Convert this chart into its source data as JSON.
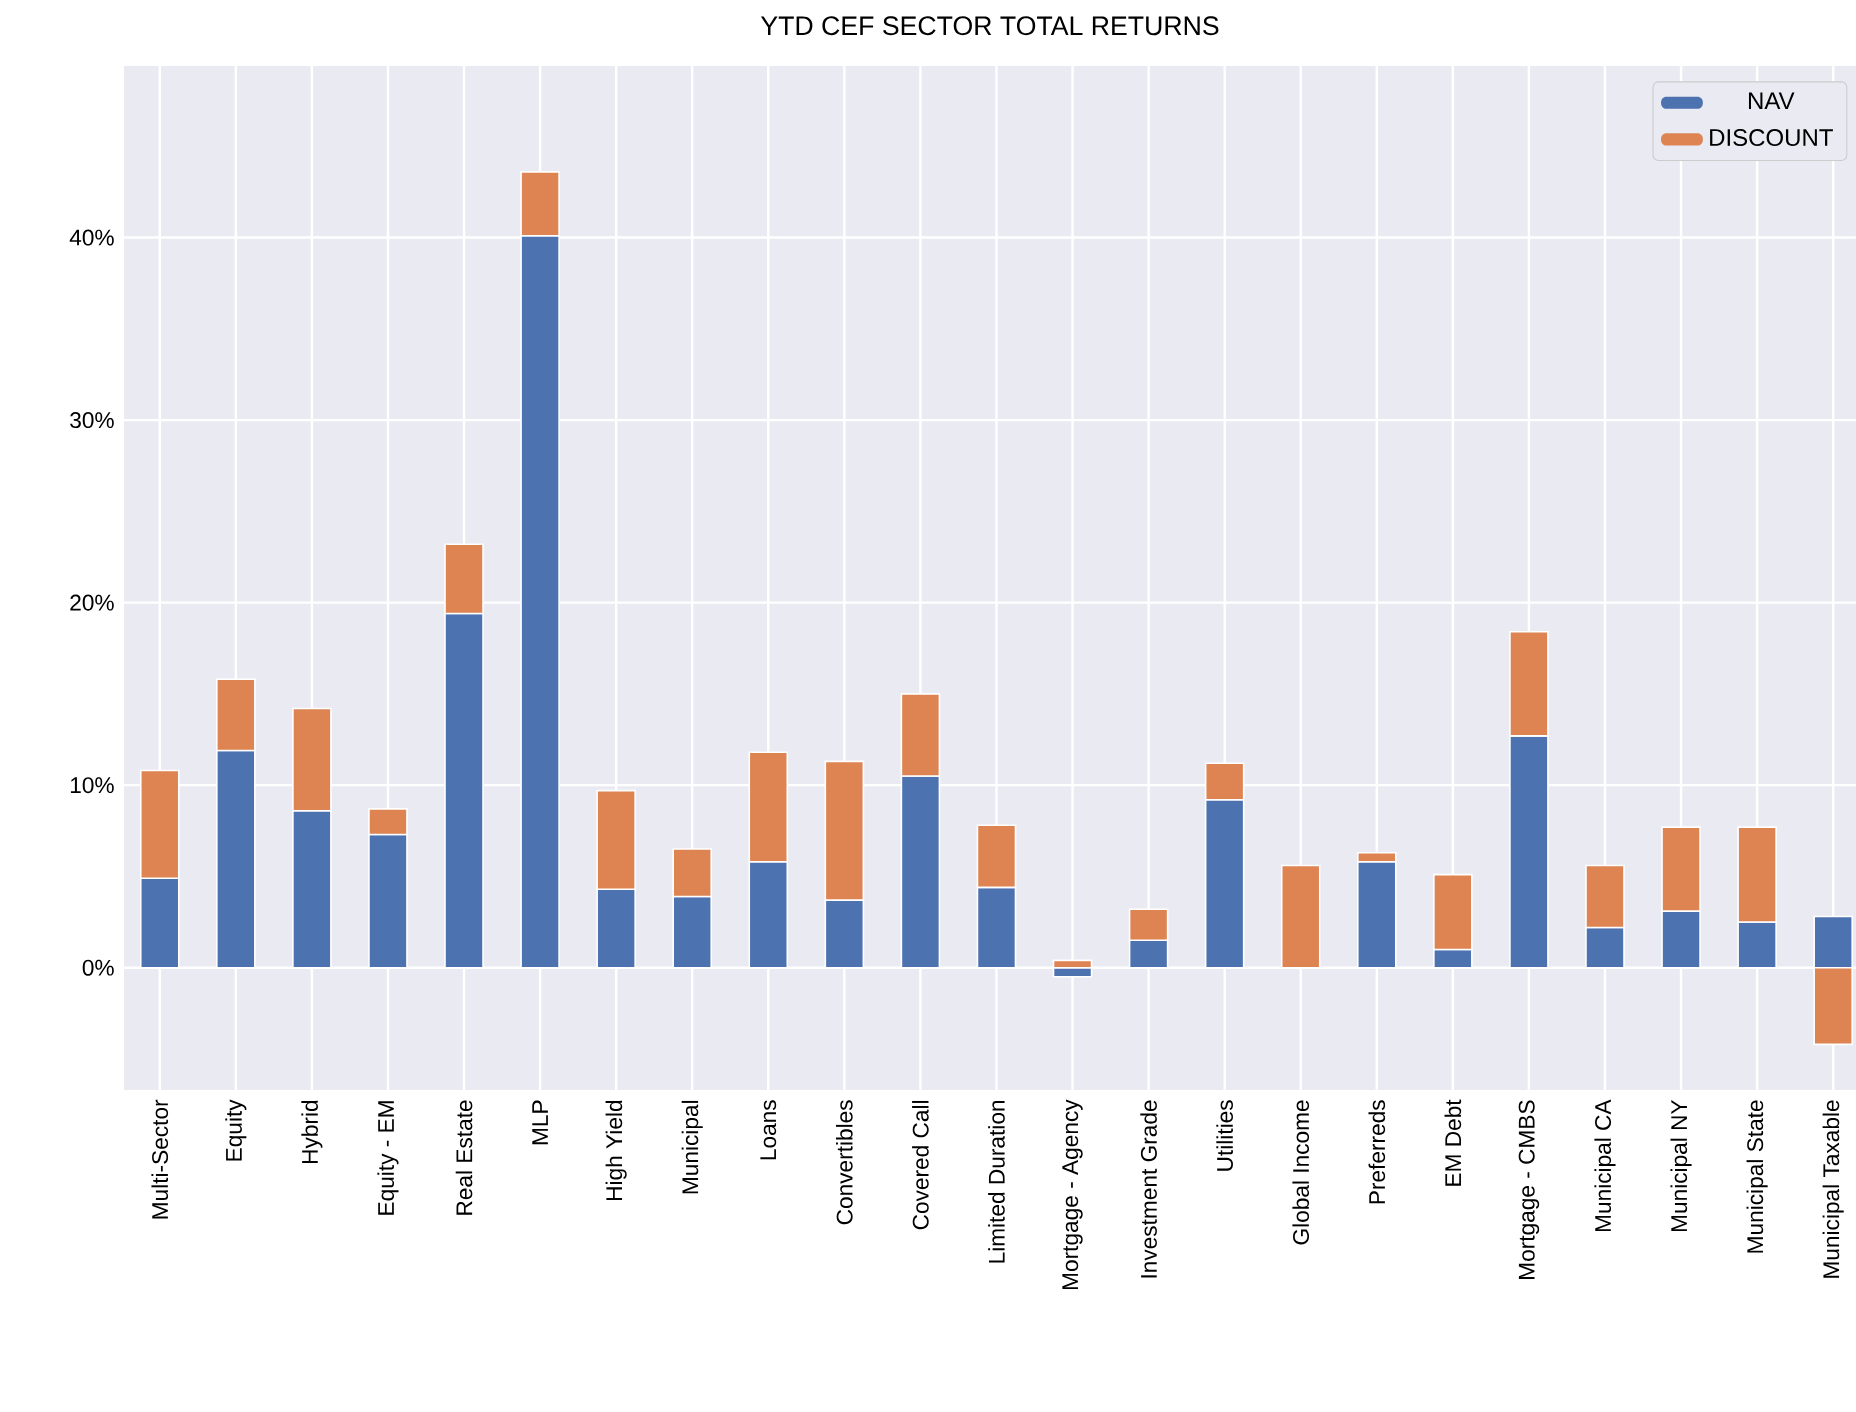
{
  "chart_data": {
    "type": "bar",
    "title": "YTD CEF SECTOR TOTAL RETURNS",
    "stacked": true,
    "grid": true,
    "legend": "top right",
    "categories": [
      "Multi-Sector",
      "Equity",
      "Hybrid",
      "Equity - EM",
      "Real Estate",
      "MLP",
      "High Yield",
      "Municipal",
      "Loans",
      "Convertibles",
      "Covered Call",
      "Limited Duration",
      "Mortgage - Agency",
      "Investment Grade",
      "Utilities",
      "Global Income",
      "Preferreds",
      "EM Debt",
      "Mortgage - CMBS",
      "Municipal CA",
      "Municipal NY",
      "Municipal State",
      "Municipal Taxable"
    ],
    "series": [
      {
        "name": "NAV",
        "color": "#4c72b0",
        "values": [
          4.9,
          11.9,
          8.6,
          7.3,
          19.4,
          40.1,
          4.3,
          3.9,
          5.8,
          3.7,
          10.5,
          4.4,
          -0.5,
          1.5,
          9.2,
          0,
          5.8,
          1.0,
          12.7,
          2.2,
          3.1,
          2.5,
          2.8
        ]
      },
      {
        "name": "DISCOUNT",
        "color": "#dd8452",
        "values": [
          5.9,
          3.9,
          5.6,
          1.4,
          3.8,
          3.5,
          5.4,
          2.6,
          6.0,
          7.6,
          4.5,
          3.4,
          0.4,
          1.7,
          2.0,
          5.6,
          0.5,
          4.1,
          5.7,
          3.4,
          4.6,
          5.2,
          -4.2
        ]
      }
    ],
    "ylim": [
      -6.7,
      49.4
    ],
    "yticks": [
      {
        "value": 0,
        "label": "0%"
      },
      {
        "value": 10,
        "label": "10%"
      },
      {
        "value": 20,
        "label": "20%"
      },
      {
        "value": 30,
        "label": "30%"
      },
      {
        "value": 40,
        "label": "40%"
      }
    ]
  }
}
